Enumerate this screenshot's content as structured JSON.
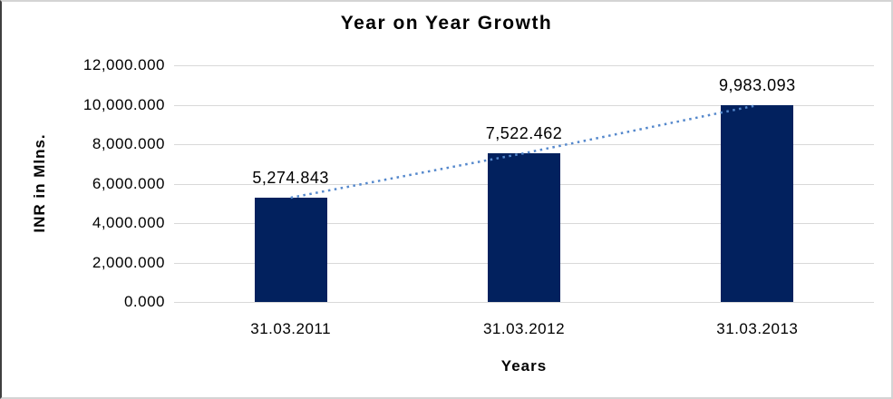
{
  "chart_data": {
    "type": "bar",
    "title": "Year on Year Growth",
    "xlabel": "Years",
    "ylabel": "INR in Mlns.",
    "categories": [
      "31.03.2011",
      "31.03.2012",
      "31.03.2013"
    ],
    "values": [
      5274.843,
      7522.462,
      9983.093
    ],
    "data_labels": [
      "5,274.843",
      "7,522.462",
      "9,983.093"
    ],
    "ylim": [
      0,
      12000
    ],
    "yticks": [
      {
        "value": 0,
        "label": "0.000"
      },
      {
        "value": 2000,
        "label": "2,000.000"
      },
      {
        "value": 4000,
        "label": "4,000.000"
      },
      {
        "value": 6000,
        "label": "6,000.000"
      },
      {
        "value": 8000,
        "label": "8,000.000"
      },
      {
        "value": 10000,
        "label": "10,000.000"
      },
      {
        "value": 12000,
        "label": "12,000.000"
      }
    ],
    "grid": true,
    "legend_position": "none",
    "trendline": {
      "style": "dotted",
      "points_follow": "bar-tops"
    },
    "colors": {
      "bar": "#02215E",
      "trendline": "#5588CC",
      "gridline": "#D9D9D9",
      "text": "#000000",
      "background": "#FFFFFF"
    }
  }
}
